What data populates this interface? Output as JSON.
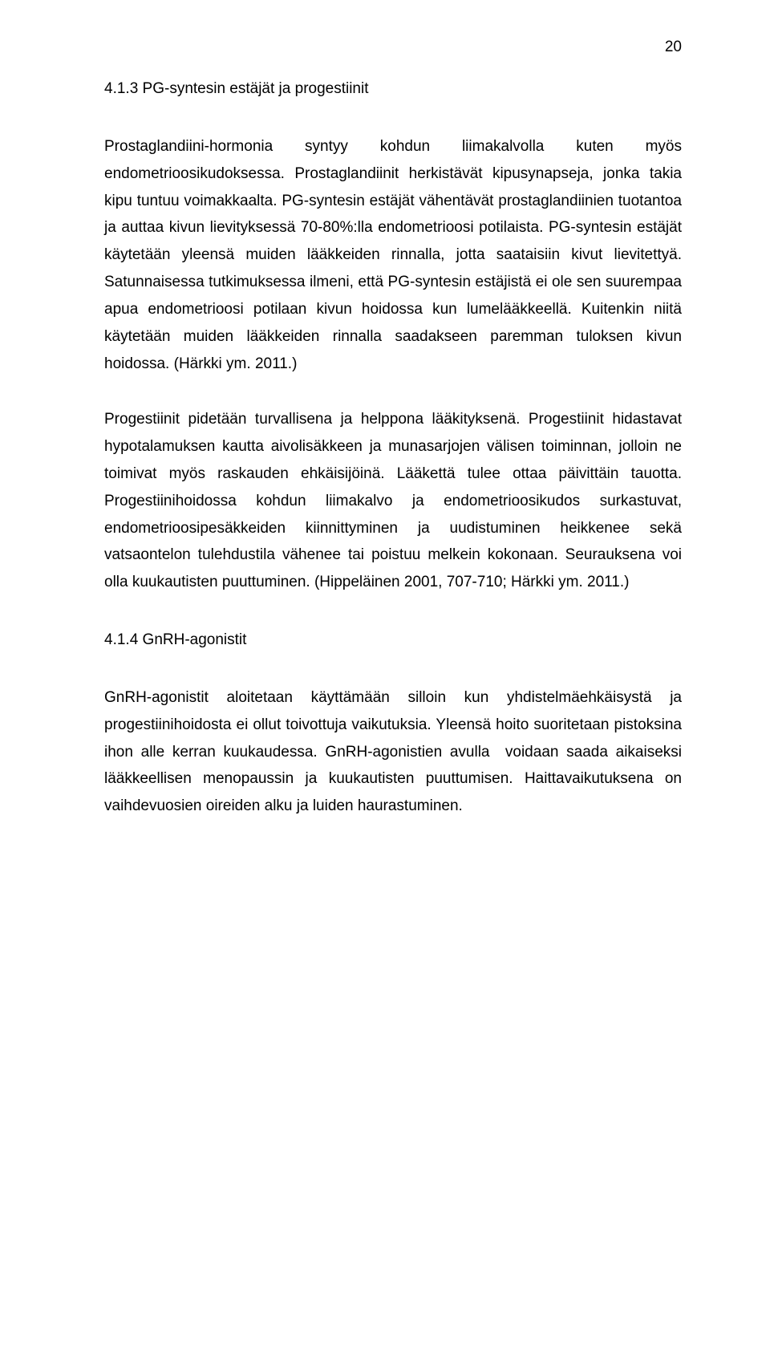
{
  "page_number": "20",
  "heading1": "4.1.3 PG-syntesin estäjät ja progestiinit",
  "para1": "Prostaglandiini-hormonia syntyy kohdun liimakalvolla kuten myös endometrioosikudoksessa. Prostaglandiinit herkistävät kipusynapseja, jonka takia kipu tuntuu voimakkaalta. PG-syntesin estäjät vähentävät prostaglandiinien tuotantoa ja auttaa kivun lievityksessä 70-80%:lla endometrioosi potilaista. PG-syntesin estäjät käytetään yleensä muiden lääkkeiden rinnalla, jotta saataisiin kivut lievitettyä. Satunnaisessa tutkimuksessa ilmeni, että PG-syntesin estäjistä ei ole sen suurempaa apua endometrioosi potilaan kivun hoidossa kun lumelääkkeellä. Kuitenkin niitä käytetään muiden lääkkeiden rinnalla saadakseen paremman tuloksen kivun hoidossa. (Härkki ym. 2011.)",
  "para2": "Progestiinit pidetään turvallisena ja helppona lääkityksenä. Progestiinit hidastavat hypotalamuksen kautta aivolisäkkeen ja munasarjojen välisen toiminnan, jolloin ne toimivat myös raskauden ehkäisijöinä. Lääkettä tulee ottaa päivittäin tauotta. Progestiinihoidossa kohdun liimakalvo ja endometrioosikudos surkastuvat, endometrioosipesäkkeiden kiinnittyminen ja uudistuminen heikkenee sekä vatsaontelon tulehdustila vähenee tai poistuu melkein kokonaan. Seurauksena voi olla kuukautisten puuttuminen. (Hippeläinen 2001, 707-710; Härkki ym. 2011.)",
  "heading2": "4.1.4 GnRH-agonistit",
  "para3": "GnRH-agonistit aloitetaan käyttämään silloin kun yhdistelmäehkäisystä ja progestiinihoidosta ei ollut toivottuja vaikutuksia. Yleensä hoito suoritetaan pistoksina  ihon alle kerran kuukaudessa. GnRH-agonistien avulla  voidaan saada aikaiseksi lääkkeellisen menopaussin ja kuukautisten puuttumisen. Haittavaikutuksena on vaihdevuosien oireiden alku ja luiden haurastuminen."
}
